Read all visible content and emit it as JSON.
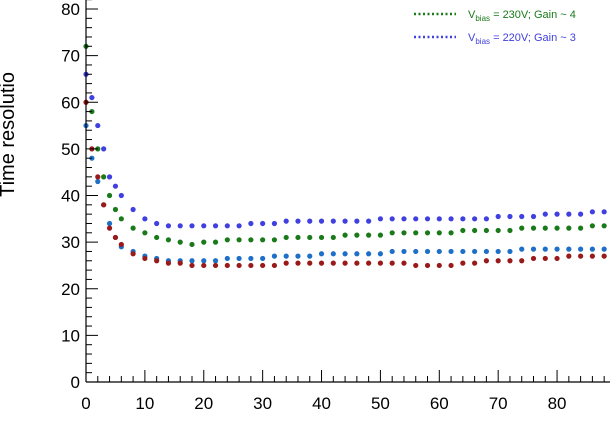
{
  "chart_data": {
    "type": "scatter",
    "title": "",
    "xlabel": "",
    "ylabel": "Time resolutio",
    "xlim": [
      0,
      88
    ],
    "ylim": [
      0,
      85
    ],
    "x_ticks": [
      0,
      10,
      20,
      30,
      40,
      50,
      60,
      70,
      80
    ],
    "y_ticks": [
      0,
      10,
      20,
      30,
      40,
      50,
      60,
      70,
      80
    ],
    "x_tick_labels": [
      "0",
      "10",
      "20",
      "30",
      "40",
      "50",
      "60",
      "70",
      "80"
    ],
    "y_tick_labels": [
      "0",
      "10",
      "20",
      "30",
      "40",
      "50",
      "60",
      "70",
      "80"
    ],
    "grid": false,
    "legend_position": "top-right",
    "legend": [
      {
        "prefix": "V",
        "sub": "bias",
        "text": " = 230V; Gain ~ 4",
        "color": "#1a7a1a"
      },
      {
        "prefix": "V",
        "sub": "bias",
        "text": " = 220V; Gain ~ 3",
        "color": "#4040e0"
      }
    ],
    "series": [
      {
        "color": "#1a7a1a",
        "x": [
          0,
          1,
          2,
          3,
          4,
          5,
          6,
          8,
          10,
          12,
          14,
          16,
          18,
          20,
          22,
          24,
          26,
          28,
          30,
          32,
          34,
          36,
          38,
          40,
          42,
          44,
          46,
          48,
          50,
          52,
          54,
          56,
          58,
          60,
          62,
          64,
          66,
          68,
          70,
          72,
          74,
          76,
          78,
          80,
          82,
          84,
          86,
          88
        ],
        "y": [
          72,
          58,
          50,
          44,
          40,
          37,
          35,
          33,
          32,
          31,
          30.5,
          30,
          29.5,
          30,
          30,
          30.5,
          30.5,
          30.5,
          30.5,
          30.5,
          31,
          31,
          31,
          31,
          31,
          31.5,
          31.5,
          31.5,
          31.5,
          32,
          32,
          32,
          32,
          32,
          32,
          32.5,
          32.5,
          32.5,
          32.5,
          32.5,
          33,
          33,
          33,
          33,
          33,
          33,
          33.5,
          33.5
        ]
      },
      {
        "color": "#4040e0",
        "x": [
          0,
          1,
          2,
          3,
          4,
          5,
          6,
          8,
          10,
          12,
          14,
          16,
          18,
          20,
          22,
          24,
          26,
          28,
          30,
          32,
          34,
          36,
          38,
          40,
          42,
          44,
          46,
          48,
          50,
          52,
          54,
          56,
          58,
          60,
          62,
          64,
          66,
          68,
          70,
          72,
          74,
          76,
          78,
          80,
          82,
          84,
          86,
          88
        ],
        "y": [
          66,
          61,
          55,
          50,
          44,
          42,
          40,
          37,
          35,
          34,
          33.5,
          33.5,
          33.5,
          33.5,
          33.5,
          33.5,
          33.5,
          34,
          34,
          34,
          34.5,
          34.5,
          34.5,
          34.5,
          34.5,
          34.5,
          34.5,
          34.5,
          35,
          35,
          35,
          35,
          35,
          35,
          35,
          35,
          35,
          35,
          35.5,
          35.5,
          35.5,
          35.5,
          36,
          36,
          36,
          36,
          36.5,
          36.5
        ]
      },
      {
        "color": "#1e6fc8",
        "x": [
          0,
          1,
          2,
          3,
          4,
          5,
          6,
          8,
          10,
          12,
          14,
          16,
          18,
          20,
          22,
          24,
          26,
          28,
          30,
          32,
          34,
          36,
          38,
          40,
          42,
          44,
          46,
          48,
          50,
          52,
          54,
          56,
          58,
          60,
          62,
          64,
          66,
          68,
          70,
          72,
          74,
          76,
          78,
          80,
          82,
          84,
          86,
          88
        ],
        "y": [
          55,
          48,
          43,
          38,
          34,
          31,
          29,
          28,
          27,
          26.5,
          26,
          26,
          26,
          26,
          26,
          26.5,
          26.5,
          26.5,
          26.5,
          27,
          27,
          27,
          27,
          27.5,
          27.5,
          27.5,
          27.5,
          27.5,
          27.5,
          28,
          28,
          28,
          28,
          28,
          28,
          28,
          28,
          28,
          28,
          28,
          28.5,
          28.5,
          28.5,
          28.5,
          28.5,
          28.5,
          28.5,
          28.5
        ]
      },
      {
        "color": "#9a1a1a",
        "x": [
          0,
          1,
          2,
          3,
          4,
          5,
          6,
          8,
          10,
          12,
          14,
          16,
          18,
          20,
          22,
          24,
          26,
          28,
          30,
          32,
          34,
          36,
          38,
          40,
          42,
          44,
          46,
          48,
          50,
          52,
          54,
          56,
          58,
          60,
          62,
          64,
          66,
          68,
          70,
          72,
          74,
          76,
          78,
          80,
          82,
          84,
          86,
          88
        ],
        "y": [
          60,
          50,
          44,
          38,
          33,
          31,
          29.5,
          27.5,
          26.5,
          26,
          25.5,
          25.5,
          25,
          25,
          25,
          25,
          25,
          25,
          25,
          25,
          25.5,
          25.5,
          25.5,
          25.5,
          25.5,
          25.5,
          25.5,
          25.5,
          25.5,
          25.5,
          25.5,
          25,
          25,
          25,
          25,
          25.5,
          25.5,
          26,
          26,
          26,
          26,
          26.5,
          26.5,
          26.5,
          27,
          27,
          27,
          27
        ]
      }
    ]
  }
}
